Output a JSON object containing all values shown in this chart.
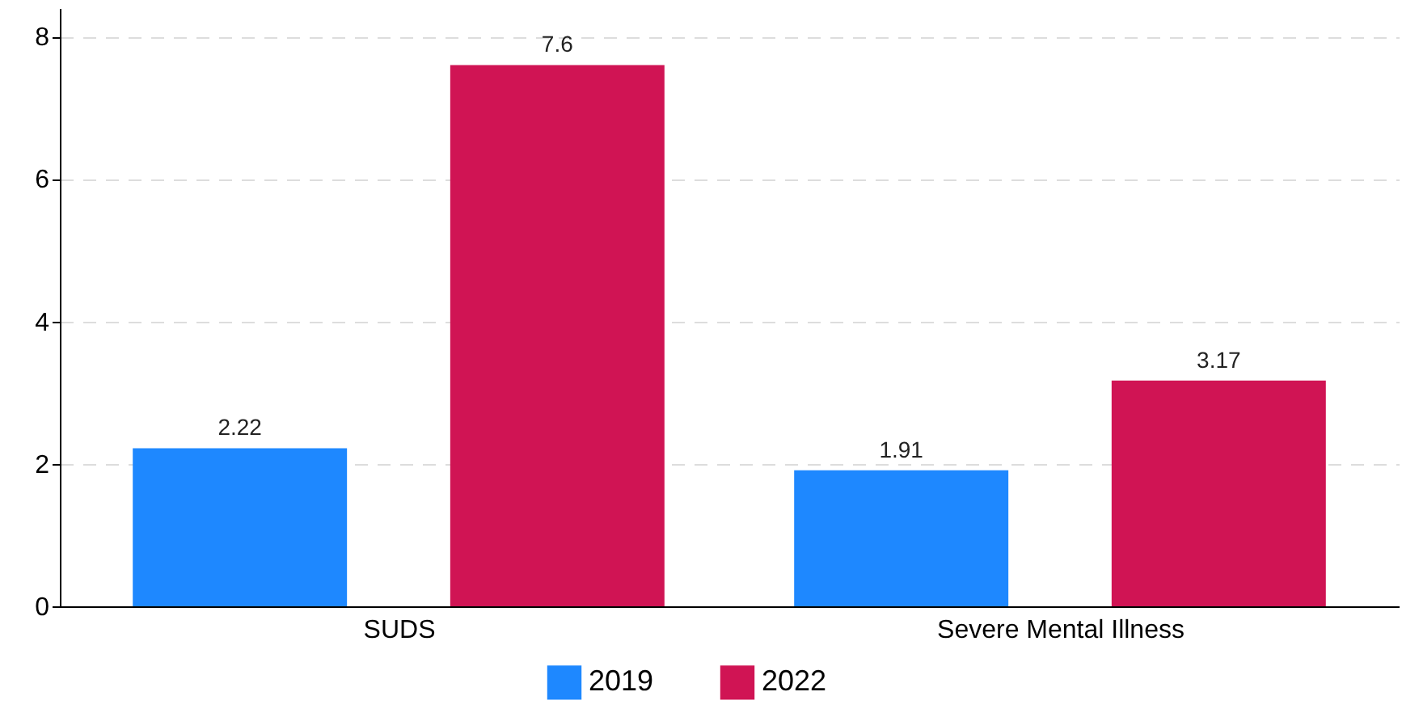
{
  "chart_data": {
    "type": "bar",
    "categories": [
      "SUDS",
      "Severe Mental Illness"
    ],
    "series": [
      {
        "name": "2019",
        "color": "#1e88ff",
        "values": [
          2.22,
          1.91
        ]
      },
      {
        "name": "2022",
        "color": "#d01454",
        "values": [
          7.6,
          3.17
        ]
      }
    ],
    "ylim": [
      0,
      8.4
    ],
    "yticks": [
      0,
      2,
      4,
      6,
      8
    ],
    "grid": "y",
    "legend": "bottom",
    "data_labels": true
  }
}
